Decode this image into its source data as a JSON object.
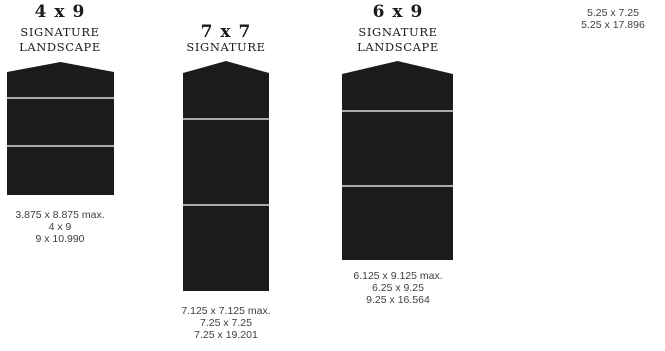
{
  "products": [
    {
      "size": "4 x 9",
      "title_lines": [
        "SIGNATURE",
        "LANDSCAPE"
      ],
      "specs": [
        "3.875 x 8.875 max.",
        "4 x 9",
        "9 x 10.990"
      ],
      "panels": 3
    },
    {
      "size": "7 x 7",
      "title_lines": [
        "SIGNATURE"
      ],
      "specs": [
        "7.125 x 7.125 max.",
        "7.25 x 7.25",
        "7.25 x 19.201"
      ],
      "panels": 3
    },
    {
      "size": "6 x 9",
      "title_lines": [
        "SIGNATURE",
        "LANDSCAPE"
      ],
      "specs": [
        "6.125 x 9.125 max.",
        "6.25 x 9.25",
        "9.25 x 16.564"
      ],
      "panels": 3
    },
    {
      "specs": [
        "5.25 x 7.25",
        "5.25 x 17.896"
      ]
    }
  ],
  "colors": {
    "panel_fill": "#1b1b1b",
    "fold_line": "#ffffff",
    "title_text": "#1b1b1b",
    "spec_text": "#404040"
  }
}
